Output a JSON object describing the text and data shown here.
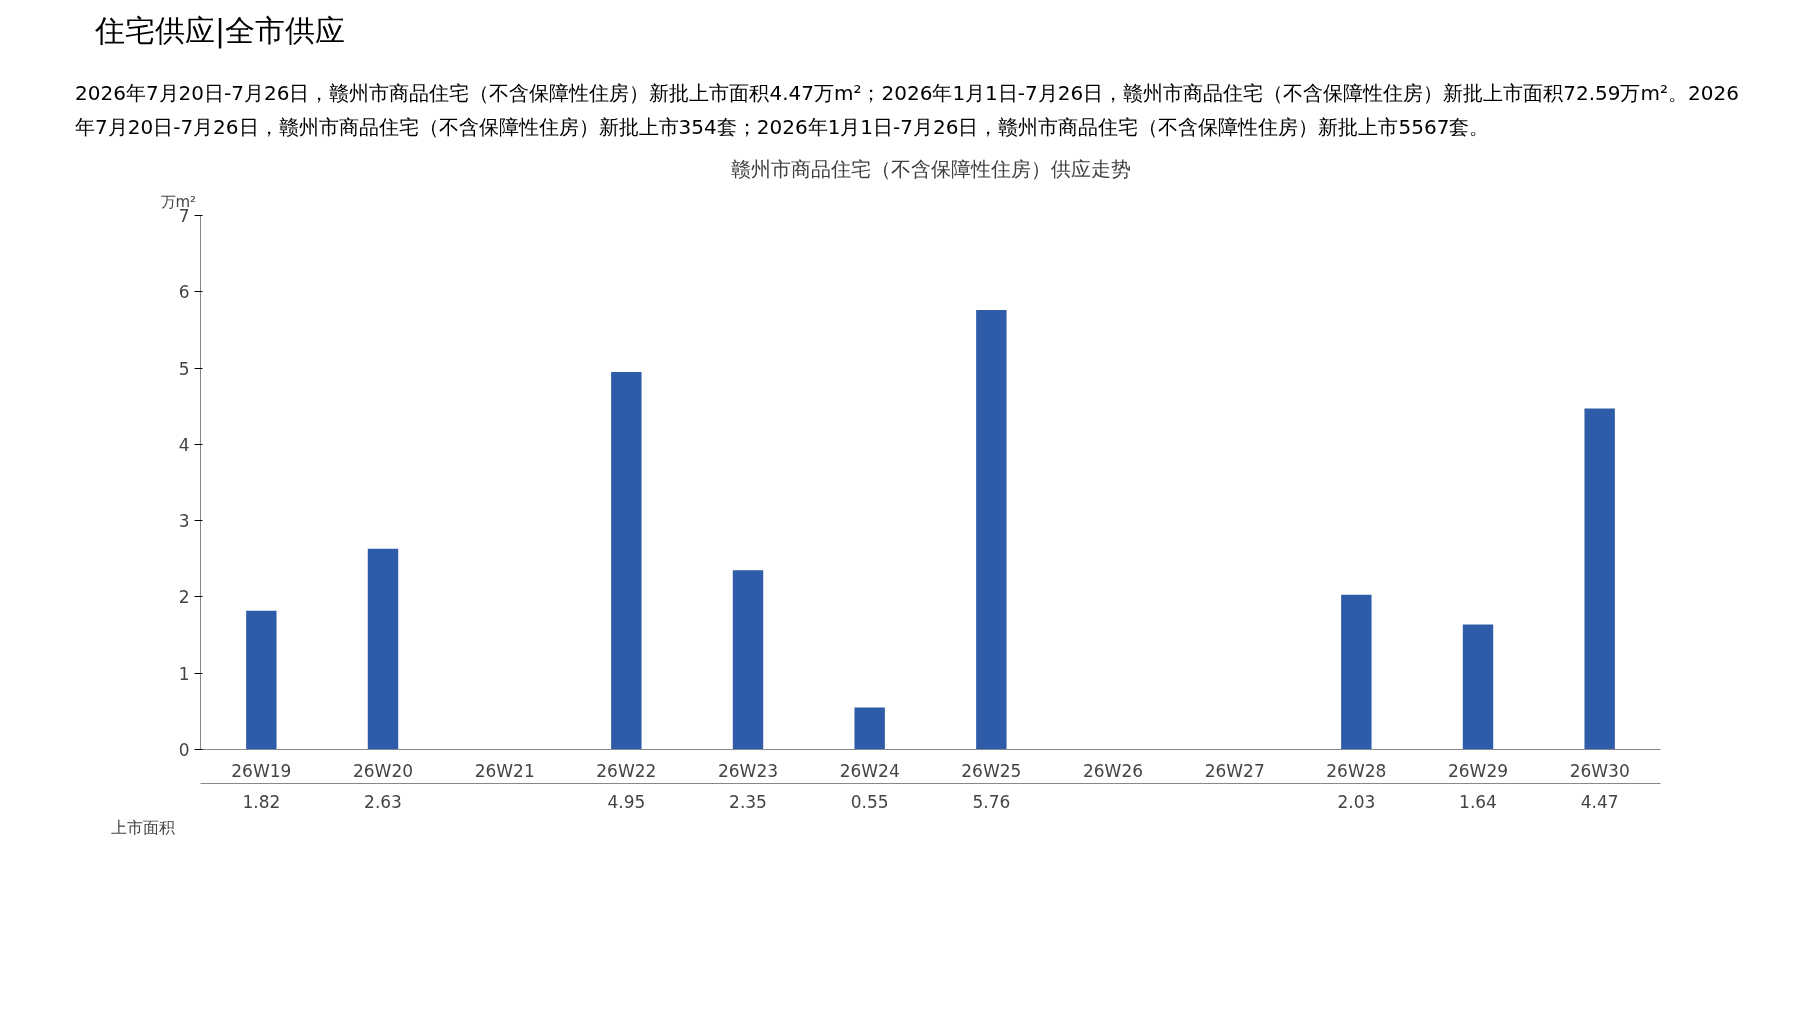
{
  "chart_data": {
    "type": "bar",
    "title": "赣州市商品住宅（不含保障性住房）供应走势",
    "annotations": [
      "住宅供应|全市供应",
      "2026年7月20日-7月26日，赣州市商品住宅（不含保障性住房）新批上市面积4.47万m²；2026年1月1日-7月26日，赣州市商品住宅（不含保障性住房）新批上市面积72.59万m²。2026年7月20日-7月26日，赣州市商品住宅（不含保障性住房）新批上市354套；2026年1月1日-7月26日，赣州市商品住宅（不含保障性住房）新批上市5567套。"
    ],
    "ylabel": "万m²",
    "categories": [
      "26W19",
      "26W20",
      "26W21",
      "26W22",
      "26W23",
      "26W24",
      "26W25",
      "26W26",
      "26W27",
      "26W28",
      "26W29",
      "26W30"
    ],
    "series": [
      {
        "name": "上市面积",
        "color": "#2e5ca8",
        "values": [
          1.82,
          2.63,
          null,
          4.95,
          2.35,
          0.55,
          5.76,
          null,
          null,
          2.03,
          1.64,
          4.47
        ]
      }
    ],
    "ylim": [
      0,
      7
    ],
    "yticks": [
      0,
      1,
      2,
      3,
      4,
      5,
      6,
      7
    ],
    "data_labels": true,
    "grid": false
  }
}
